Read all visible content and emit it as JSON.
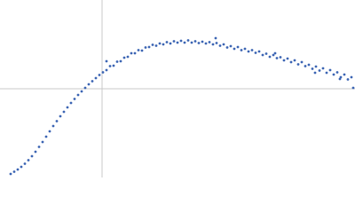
{
  "chart_data": {
    "type": "scatter",
    "xlim": [
      0,
      400
    ],
    "ylim": [
      0,
      200
    ],
    "crosshair": {
      "x": 115,
      "y": 100
    },
    "color": "#3b64b3",
    "x": [
      12,
      16,
      20,
      24,
      28,
      32,
      36,
      40,
      44,
      48,
      52,
      56,
      60,
      64,
      68,
      72,
      76,
      80,
      84,
      88,
      92,
      96,
      100,
      104,
      108,
      112,
      116,
      120,
      124,
      128,
      132,
      136,
      140,
      144,
      148,
      152,
      156,
      160,
      164,
      168,
      172,
      176,
      180,
      184,
      188,
      192,
      196,
      200,
      204,
      208,
      212,
      216,
      220,
      224,
      228,
      232,
      236,
      240,
      244,
      248,
      252,
      256,
      260,
      264,
      268,
      272,
      276,
      280,
      284,
      288,
      292,
      296,
      300,
      304,
      308,
      312,
      316,
      320,
      324,
      328,
      332,
      336,
      340,
      344,
      348,
      352,
      356,
      360,
      364,
      368,
      372,
      376,
      380,
      384,
      388,
      392,
      396,
      120,
      243,
      310,
      355,
      383,
      398
    ],
    "values": [
      4,
      6.5,
      9,
      12,
      15.5,
      19.5,
      24,
      29,
      34.5,
      40,
      46,
      52,
      58,
      63.5,
      69,
      74,
      79,
      84,
      88.5,
      93,
      97,
      101,
      105,
      108.5,
      112,
      115.5,
      118.5,
      121,
      125.5,
      126,
      130.5,
      131,
      135,
      136,
      140,
      140,
      143.5,
      143,
      146.5,
      147,
      149.5,
      148.5,
      151,
      150,
      152.5,
      151,
      153.5,
      152,
      154,
      152,
      154.5,
      152,
      153.5,
      151.5,
      153,
      151,
      152.5,
      150,
      151.5,
      148.5,
      150,
      146.5,
      148,
      145,
      147,
      143.5,
      145,
      142,
      143.5,
      140.5,
      142,
      138,
      139.5,
      136,
      138,
      134.5,
      135.5,
      132,
      134,
      130,
      132,
      127.5,
      130,
      125.5,
      127,
      122.5,
      125,
      120.5,
      123,
      118,
      121,
      116,
      118.5,
      113,
      116,
      110.5,
      113,
      131,
      157,
      140,
      118,
      111,
      101
    ]
  }
}
